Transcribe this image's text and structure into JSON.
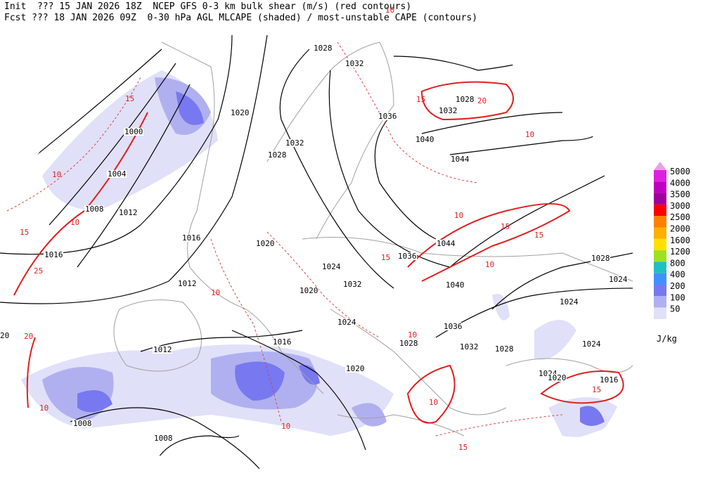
{
  "header": {
    "line1": "Init  ??? 15 JAN 2026 18Z  NCEP GFS 0-3 km bulk shear (m/s) (red contours)",
    "line2": "Fcst ??? 18 JAN 2026 09Z  0-30 hPa AGL MLCAPE (shaded) / most-unstable CAPE (contours)"
  },
  "legend": {
    "levels": [
      {
        "label": "5000",
        "color": "#e020e0"
      },
      {
        "label": "4000",
        "color": "#c000c0"
      },
      {
        "label": "3500",
        "color": "#a000a0"
      },
      {
        "label": "3000",
        "color": "#ff0000"
      },
      {
        "label": "2500",
        "color": "#ff8000"
      },
      {
        "label": "2000",
        "color": "#ffb000"
      },
      {
        "label": "1600",
        "color": "#ffe000"
      },
      {
        "label": "1200",
        "color": "#a0e020"
      },
      {
        "label": "800",
        "color": "#20c0c0"
      },
      {
        "label": "400",
        "color": "#4090ff"
      },
      {
        "label": "200",
        "color": "#7878f0"
      },
      {
        "label": "100",
        "color": "#b0b0f0"
      },
      {
        "label": "50",
        "color": "#e0e0f8"
      }
    ],
    "unit": "J/kg"
  },
  "isobar_labels": [
    "1028",
    "1032",
    "1020",
    "1036",
    "1032",
    "1028",
    "1040",
    "1044",
    "1000",
    "1032",
    "1028",
    "1004",
    "1008",
    "1012",
    "1016",
    "1016",
    "1020",
    "1044",
    "1036",
    "1024",
    "1028",
    "1040",
    "1032",
    "1020",
    "1012",
    "1024",
    "1024",
    "1024",
    "1036",
    "1028",
    "1032",
    "1028",
    "1016",
    "1012",
    "1024",
    "1020",
    "1024",
    "1020",
    "1016",
    "1008",
    "1008",
    "20"
  ],
  "shear_labels": [
    "15",
    "10",
    "15",
    "25",
    "20",
    "10",
    "15",
    "20",
    "10",
    "15",
    "15",
    "15",
    "10",
    "10",
    "10",
    "10",
    "15",
    "10",
    "10",
    "15",
    "10",
    "10"
  ]
}
